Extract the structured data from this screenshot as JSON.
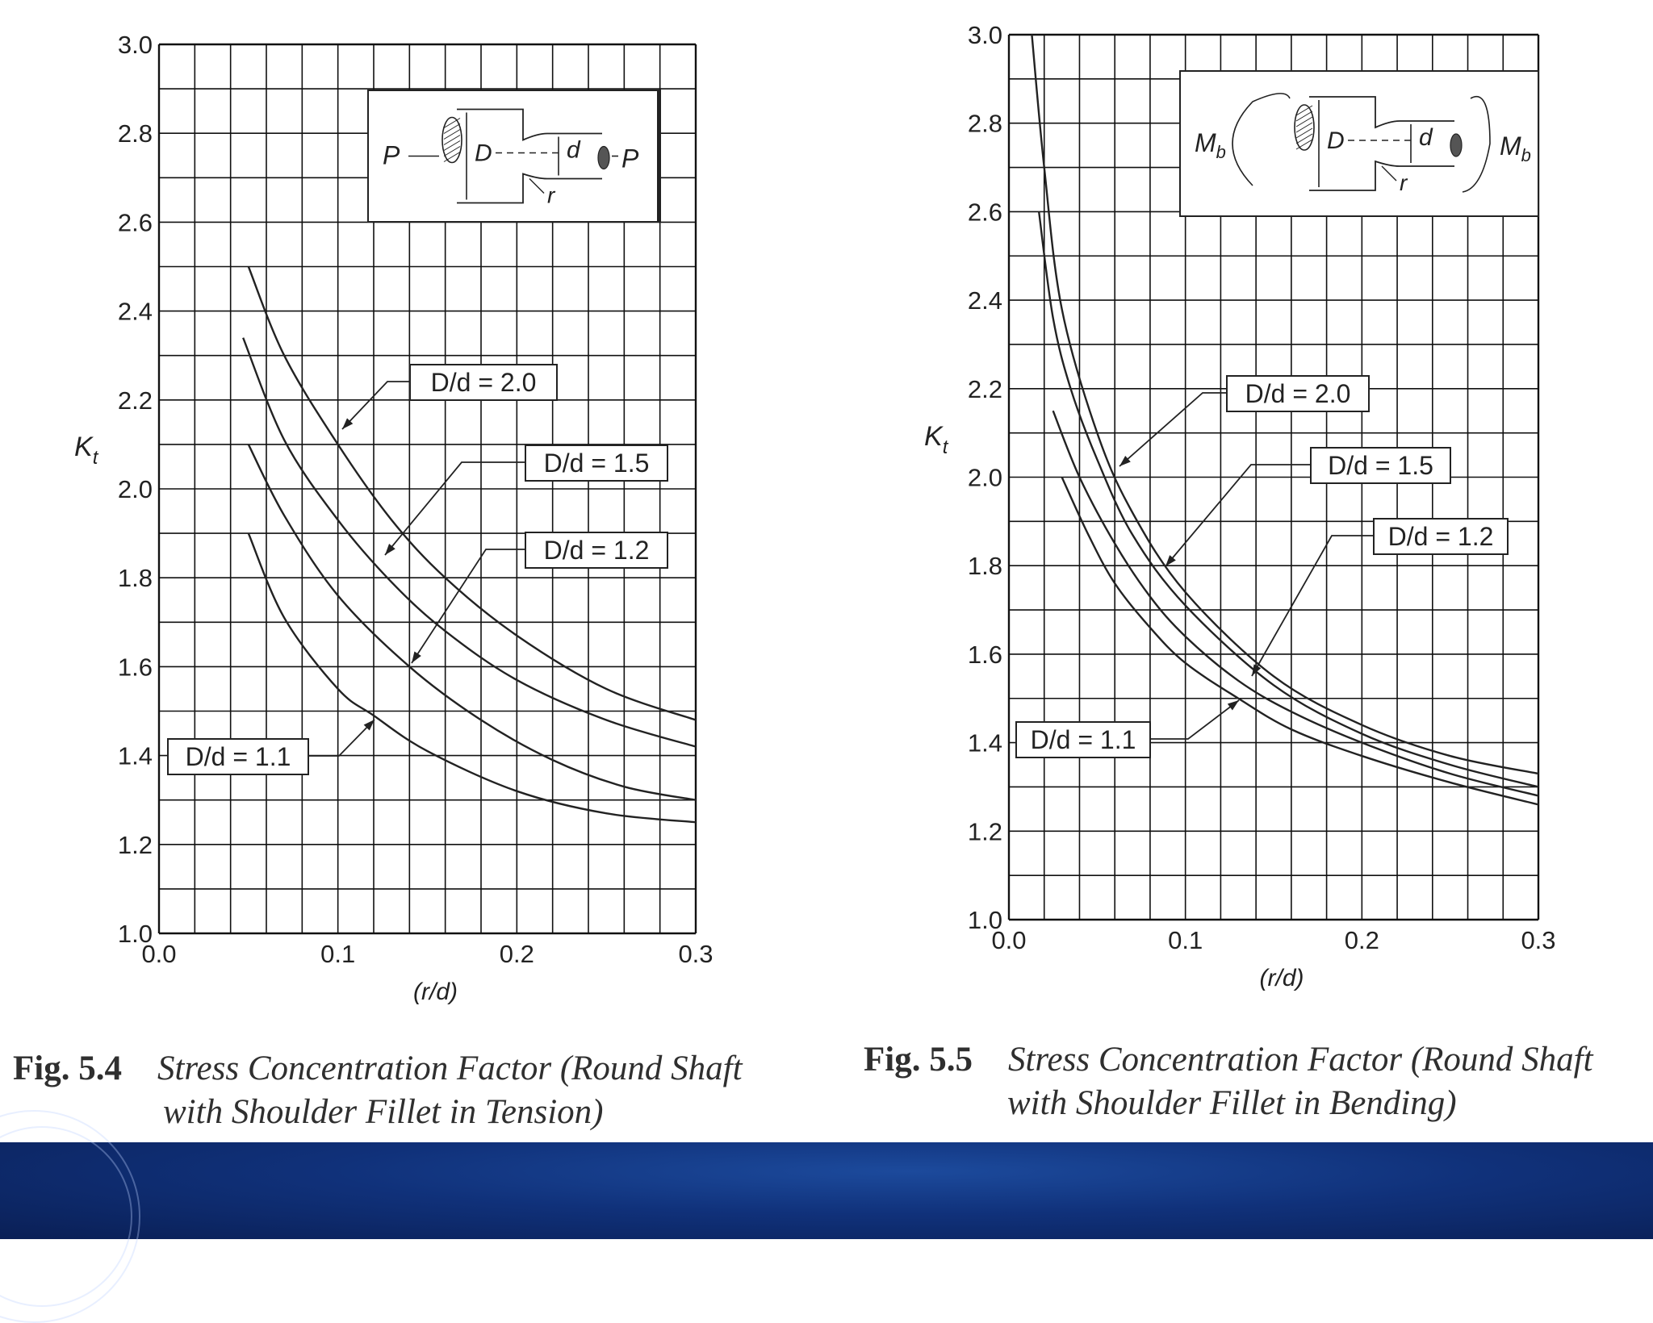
{
  "chart_data": [
    {
      "type": "line",
      "ylabel": "K",
      "ylabel_sub": "t",
      "xlabel": "(r/d)",
      "xlim": [
        0.0,
        0.3
      ],
      "ylim": [
        1.0,
        3.0
      ],
      "x_ticks": [
        "0.0",
        "0.1",
        "0.2",
        "0.3"
      ],
      "y_ticks": [
        "1.0",
        "1.2",
        "1.4",
        "1.6",
        "1.8",
        "2.0",
        "2.2",
        "2.4",
        "2.6",
        "2.8",
        "3.0"
      ],
      "grid": true,
      "series": [
        {
          "name": "D/d = 2.0",
          "x": [
            0.05,
            0.07,
            0.1,
            0.13,
            0.16,
            0.2,
            0.25,
            0.3
          ],
          "y": [
            2.5,
            2.3,
            2.1,
            1.93,
            1.8,
            1.67,
            1.55,
            1.48
          ]
        },
        {
          "name": "D/d = 1.5",
          "x": [
            0.047,
            0.07,
            0.1,
            0.13,
            0.16,
            0.2,
            0.25,
            0.3
          ],
          "y": [
            2.34,
            2.11,
            1.93,
            1.79,
            1.68,
            1.57,
            1.48,
            1.42
          ]
        },
        {
          "name": "D/d = 1.2",
          "x": [
            0.05,
            0.07,
            0.1,
            0.14,
            0.18,
            0.22,
            0.26,
            0.3
          ],
          "y": [
            2.1,
            1.94,
            1.76,
            1.6,
            1.48,
            1.39,
            1.33,
            1.3
          ]
        },
        {
          "name": "D/d = 1.1",
          "x": [
            0.05,
            0.07,
            0.1,
            0.12,
            0.15,
            0.2,
            0.25,
            0.3
          ],
          "y": [
            1.9,
            1.71,
            1.55,
            1.49,
            1.41,
            1.32,
            1.27,
            1.25
          ]
        }
      ]
    },
    {
      "type": "line",
      "ylabel": "K",
      "ylabel_sub": "t",
      "xlabel": "(r/d)",
      "xlim": [
        0.0,
        0.3
      ],
      "ylim": [
        1.0,
        3.0
      ],
      "x_ticks": [
        "0.0",
        "0.1",
        "0.2",
        "0.3"
      ],
      "y_ticks": [
        "1.0",
        "1.2",
        "1.4",
        "1.6",
        "1.8",
        "2.0",
        "2.2",
        "2.4",
        "2.6",
        "2.8",
        "3.0"
      ],
      "grid": true,
      "series": [
        {
          "name": "D/d = 2.0",
          "x": [
            0.013,
            0.02,
            0.03,
            0.05,
            0.07,
            0.1,
            0.15,
            0.2,
            0.25,
            0.3
          ],
          "y": [
            3.0,
            2.7,
            2.38,
            2.1,
            1.92,
            1.74,
            1.55,
            1.44,
            1.37,
            1.33
          ]
        },
        {
          "name": "D/d = 1.5",
          "x": [
            0.017,
            0.025,
            0.035,
            0.05,
            0.07,
            0.1,
            0.15,
            0.2,
            0.25,
            0.3
          ],
          "y": [
            2.6,
            2.36,
            2.2,
            2.04,
            1.87,
            1.71,
            1.53,
            1.42,
            1.35,
            1.3
          ]
        },
        {
          "name": "D/d = 1.2",
          "x": [
            0.025,
            0.04,
            0.06,
            0.08,
            0.1,
            0.13,
            0.16,
            0.2,
            0.25,
            0.3
          ],
          "y": [
            2.15,
            2.0,
            1.85,
            1.73,
            1.64,
            1.54,
            1.47,
            1.4,
            1.33,
            1.28
          ]
        },
        {
          "name": "D/d = 1.1",
          "x": [
            0.03,
            0.045,
            0.06,
            0.08,
            0.1,
            0.13,
            0.16,
            0.2,
            0.25,
            0.3
          ],
          "y": [
            2.0,
            1.87,
            1.76,
            1.66,
            1.58,
            1.5,
            1.43,
            1.37,
            1.31,
            1.26
          ]
        }
      ]
    }
  ],
  "insets": [
    {
      "load_left": "P",
      "load_right": "P",
      "D": "D",
      "d": "d",
      "r": "r"
    },
    {
      "load_left": "M",
      "load_right": "M",
      "load_sub": "b",
      "D": "D",
      "d": "d",
      "r": "r"
    }
  ],
  "captions": [
    {
      "fig": "Fig. 5.4",
      "line1": "Stress Concentration Factor (Round Shaft",
      "line2": "with Shoulder Fillet in Tension)"
    },
    {
      "fig": "Fig. 5.5",
      "line1": "Stress Concentration Factor (Round Shaft",
      "line2": "with Shoulder Fillet in Bending)"
    }
  ],
  "colors": {
    "ink": "#222222",
    "grid": "#111111",
    "footer": "#10317a"
  }
}
